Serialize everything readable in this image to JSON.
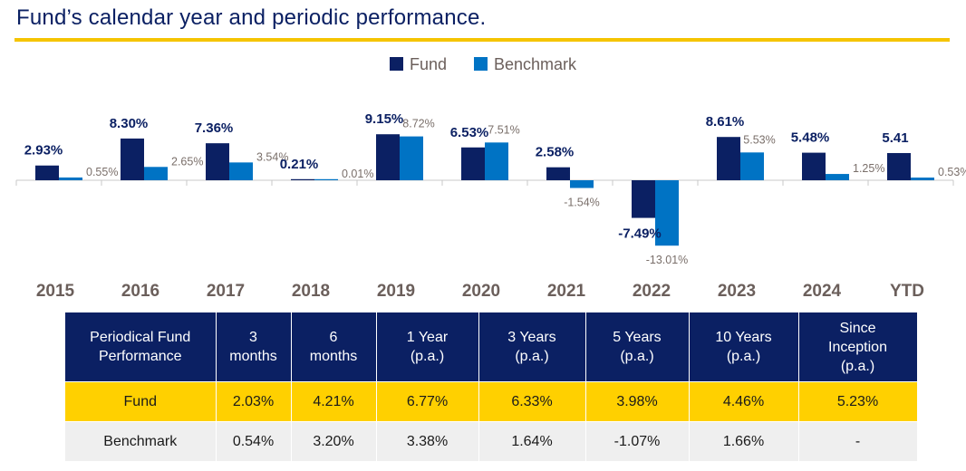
{
  "title": "Fund’s calendar year and periodic performance.",
  "colors": {
    "fund": "#0b2063",
    "benchmark": "#0073c4",
    "accent": "#f5c400",
    "table_header": "#0b2063",
    "fund_row": "#ffd000",
    "bench_row": "#efefef"
  },
  "chart_data": {
    "type": "bar",
    "categories": [
      "2015",
      "2016",
      "2017",
      "2018",
      "2019",
      "2020",
      "2021",
      "2022",
      "2023",
      "2024",
      "YTD"
    ],
    "series": [
      {
        "name": "Fund",
        "values": [
          2.93,
          8.3,
          7.36,
          0.21,
          9.15,
          6.53,
          2.58,
          -7.49,
          8.61,
          5.48,
          5.41
        ],
        "labels": [
          "2.93%",
          "8.30%",
          "7.36%",
          "0.21%",
          "9.15%",
          "6.53%",
          "2.58%",
          "-7.49%",
          "8.61%",
          "5.48%",
          "5.41"
        ]
      },
      {
        "name": "Benchmark",
        "values": [
          0.55,
          2.65,
          3.54,
          0.01,
          8.72,
          7.51,
          -1.54,
          -13.01,
          5.53,
          1.25,
          0.53
        ],
        "labels": [
          "0.55%",
          "2.65%",
          "3.54%",
          "0.01%",
          "8.72%",
          "7.51%",
          "-1.54%",
          "-13.01%",
          "5.53%",
          "1.25%",
          "0.53%"
        ]
      }
    ],
    "legend_position": "top-center",
    "grid": false
  },
  "table": {
    "headers": [
      "Periodical Fund\nPerformance",
      "3\nmonths",
      "6\nmonths",
      "1 Year\n(p.a.)",
      "3 Years\n(p.a.)",
      "5 Years\n(p.a.)",
      "10 Years\n(p.a.)",
      "Since\nInception\n(p.a.)"
    ],
    "rows": [
      {
        "label": "Fund",
        "values": [
          "2.03%",
          "4.21%",
          "6.77%",
          "6.33%",
          "3.98%",
          "4.46%",
          "5.23%"
        ]
      },
      {
        "label": "Benchmark",
        "values": [
          "0.54%",
          "3.20%",
          "3.38%",
          "1.64%",
          "-1.07%",
          "1.66%",
          "-"
        ]
      }
    ]
  }
}
